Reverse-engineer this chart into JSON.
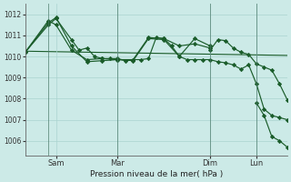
{
  "background_color": "#cceae7",
  "grid_color": "#aad4d0",
  "line_color": "#1a5c2a",
  "title": "Pression niveau de la mer( hPa )",
  "ylim": [
    1005.3,
    1012.5
  ],
  "yticks": [
    1006,
    1007,
    1008,
    1009,
    1010,
    1011,
    1012
  ],
  "x_tick_labels": [
    "Sam",
    "Mar",
    "Dim",
    "Lun"
  ],
  "x_tick_positions": [
    8,
    24,
    48,
    60
  ],
  "xlim": [
    0,
    68
  ],
  "vline_positions": [
    6,
    24,
    48,
    60
  ],
  "series1_x": [
    0,
    6,
    8,
    12,
    14,
    16,
    18,
    20,
    22,
    24,
    26,
    28,
    30,
    32,
    34,
    36,
    38,
    40,
    42,
    44,
    46,
    48,
    50,
    52,
    54,
    56,
    58,
    60,
    62,
    64,
    66,
    68
  ],
  "series1_y": [
    1010.2,
    1011.5,
    1011.8,
    1010.8,
    1010.3,
    1010.4,
    1010.0,
    1009.9,
    1009.9,
    1009.9,
    1009.8,
    1009.85,
    1009.85,
    1009.9,
    1010.9,
    1010.85,
    1010.5,
    1010.0,
    1009.85,
    1009.85,
    1009.85,
    1009.85,
    1009.75,
    1009.7,
    1009.6,
    1009.4,
    1009.6,
    1008.7,
    1007.5,
    1007.2,
    1007.1,
    1007.0
  ],
  "series2_x": [
    0,
    6,
    8,
    12,
    16,
    20,
    24,
    28,
    32,
    36,
    40,
    44,
    48
  ],
  "series2_y": [
    1010.2,
    1011.7,
    1011.5,
    1010.3,
    1009.85,
    1009.9,
    1009.85,
    1009.85,
    1010.9,
    1010.85,
    1010.5,
    1010.6,
    1010.4
  ],
  "series3_x": [
    0,
    6,
    8,
    12,
    16,
    20,
    24,
    28,
    32,
    36,
    40,
    44,
    48
  ],
  "series3_y": [
    1010.2,
    1011.6,
    1011.85,
    1010.5,
    1009.75,
    1009.8,
    1009.85,
    1009.8,
    1010.85,
    1010.8,
    1010.0,
    1010.85,
    1010.5
  ],
  "series4_x": [
    0,
    68
  ],
  "series4_y": [
    1010.25,
    1010.05
  ],
  "series6_x": [
    48,
    50,
    52,
    54,
    56,
    58,
    60,
    62,
    64,
    66,
    68
  ],
  "series6_y": [
    1010.3,
    1010.8,
    1010.75,
    1010.4,
    1010.2,
    1010.1,
    1009.65,
    1009.5,
    1009.35,
    1008.7,
    1007.95
  ],
  "series7_x": [
    60,
    62,
    64,
    66,
    68
  ],
  "series7_y": [
    1007.8,
    1007.2,
    1006.2,
    1006.0,
    1005.7
  ]
}
